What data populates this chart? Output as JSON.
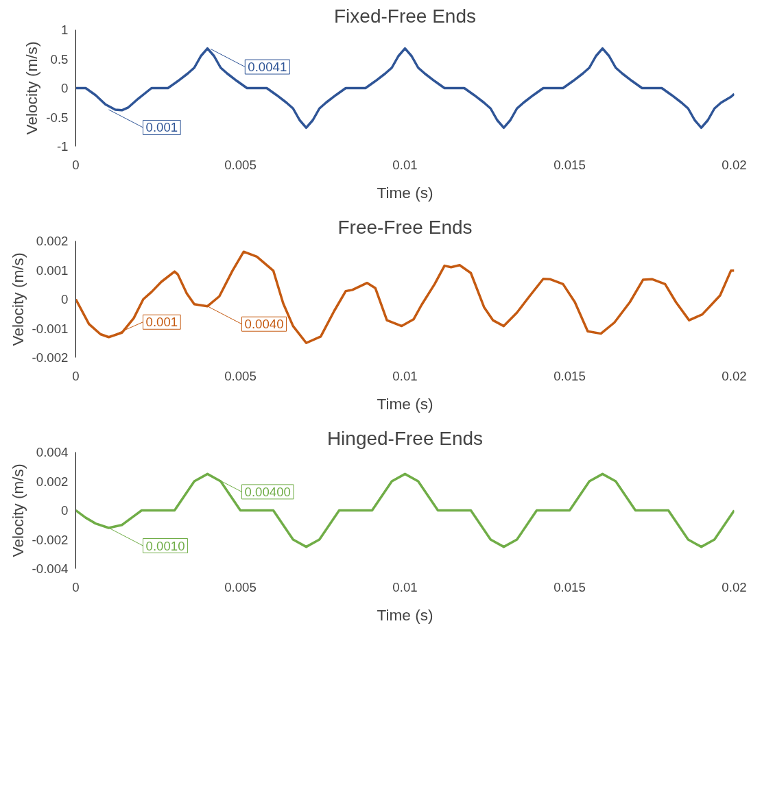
{
  "chart_data": [
    {
      "type": "line",
      "title": "Fixed-Free Ends",
      "xlabel": "Time (s)",
      "ylabel": "Velocity (m/s)",
      "xlim": [
        0,
        0.02
      ],
      "xticks": [
        0,
        0.005,
        0.01,
        0.015,
        0.02
      ],
      "ylim": [
        -1,
        1
      ],
      "yticks": [
        -1,
        -0.5,
        0,
        0.5,
        1
      ],
      "series": [
        {
          "color": "#2f5597",
          "x": [
            0,
            0.0003,
            0.0006,
            0.0009,
            0.0012,
            0.0014,
            0.0016,
            0.0019,
            0.0023,
            0.0028,
            0.0031,
            0.0034,
            0.0036,
            0.0038,
            0.004,
            0.0042,
            0.0044,
            0.0046,
            0.0049,
            0.0052,
            0.0058,
            0.0061,
            0.0064,
            0.0066,
            0.0068,
            0.007,
            0.0072,
            0.0074,
            0.0076,
            0.0079,
            0.0082,
            0.0088,
            0.0091,
            0.0094,
            0.0096,
            0.0098,
            0.01,
            0.0102,
            0.0104,
            0.0106,
            0.0109,
            0.0112,
            0.0118,
            0.0121,
            0.0124,
            0.0126,
            0.0128,
            0.013,
            0.0132,
            0.0134,
            0.0136,
            0.0139,
            0.0142,
            0.0148,
            0.0151,
            0.0154,
            0.0156,
            0.0158,
            0.016,
            0.0162,
            0.0164,
            0.0166,
            0.0169,
            0.0172,
            0.0178,
            0.0181,
            0.0184,
            0.0186,
            0.0188,
            0.019,
            0.0192,
            0.0194,
            0.0196,
            0.0199,
            0.02
          ],
          "values": [
            0,
            0,
            -0.12,
            -0.28,
            -0.37,
            -0.38,
            -0.33,
            -0.18,
            0,
            0,
            0.12,
            0.25,
            0.35,
            0.55,
            0.68,
            0.55,
            0.35,
            0.25,
            0.12,
            0,
            0,
            -0.12,
            -0.25,
            -0.35,
            -0.55,
            -0.68,
            -0.55,
            -0.35,
            -0.25,
            -0.12,
            0,
            0,
            0.12,
            0.25,
            0.35,
            0.55,
            0.68,
            0.55,
            0.35,
            0.25,
            0.12,
            0,
            0,
            -0.12,
            -0.25,
            -0.35,
            -0.55,
            -0.68,
            -0.55,
            -0.35,
            -0.25,
            -0.12,
            0,
            0,
            0.12,
            0.25,
            0.35,
            0.55,
            0.68,
            0.55,
            0.35,
            0.25,
            0.12,
            0,
            0,
            -0.12,
            -0.25,
            -0.35,
            -0.55,
            -0.68,
            -0.55,
            -0.35,
            -0.25,
            -0.15,
            -0.1
          ]
        }
      ],
      "annotations": [
        {
          "text": "0.001",
          "x": 0.001,
          "y": -0.37
        },
        {
          "text": "0.0041",
          "x": 0.0041,
          "y": 0.67
        }
      ]
    },
    {
      "type": "line",
      "title": "Free-Free Ends",
      "xlabel": "Time (s)",
      "ylabel": "Velocity (m/s)",
      "xlim": [
        0,
        0.02
      ],
      "xticks": [
        0,
        0.005,
        0.01,
        0.015,
        0.02
      ],
      "ylim": [
        -0.002,
        0.002
      ],
      "yticks": [
        -0.002,
        -0.001,
        0,
        0.001,
        0.002
      ],
      "series": [
        {
          "color": "#c55a11",
          "x": [
            0,
            0.0004,
            0.00075,
            0.001,
            0.0014,
            0.00176,
            0.00205,
            0.0023,
            0.0026,
            0.003,
            0.0031,
            0.00337,
            0.0036,
            0.004,
            0.00436,
            0.00476,
            0.0051,
            0.0055,
            0.006,
            0.0063,
            0.0066,
            0.007,
            0.00744,
            0.00785,
            0.0082,
            0.0084,
            0.00885,
            0.0091,
            0.00945,
            0.0099,
            0.01026,
            0.0105,
            0.0109,
            0.0112,
            0.0114,
            0.01166,
            0.012,
            0.0124,
            0.01267,
            0.013,
            0.0134,
            0.0138,
            0.0142,
            0.0144,
            0.0148,
            0.01516,
            0.01555,
            0.01595,
            0.01636,
            0.01683,
            0.01723,
            0.0175,
            0.0179,
            0.01823,
            0.01863,
            0.01903,
            0.01957,
            0.0199,
            0.02
          ],
          "values": [
            0,
            -0.00085,
            -0.0012,
            -0.0013,
            -0.00115,
            -0.00065,
            0,
            0.00025,
            0.0006,
            0.00095,
            0.00085,
            0.0002,
            -0.00017,
            -0.00024,
            0.0001,
            0.00098,
            0.00163,
            0.00146,
            0.00098,
            -0.00014,
            -0.00092,
            -0.0015,
            -0.00128,
            -0.0004,
            0.00028,
            0.00032,
            0.00056,
            0.00038,
            -0.00072,
            -0.00092,
            -0.00069,
            -0.0002,
            0.00052,
            0.00115,
            0.0011,
            0.00117,
            0.0009,
            -0.00027,
            -0.00072,
            -0.00092,
            -0.00046,
            0.00013,
            0.0007,
            0.00069,
            0.00052,
            -0.0001,
            -0.0011,
            -0.00118,
            -0.0008,
            -0.0001,
            0.00067,
            0.00069,
            0.00052,
            -0.0001,
            -0.00072,
            -0.00052,
            0.00013,
            0.00098,
            0.00098
          ]
        }
      ],
      "annotations": [
        {
          "text": "0.001",
          "x": 0.001,
          "y": -0.0013
        },
        {
          "text": "0.0040",
          "x": 0.004,
          "y": -0.00024
        }
      ]
    },
    {
      "type": "line",
      "title": "Hinged-Free Ends",
      "xlabel": "Time (s)",
      "ylabel": "Velocity (m/s)",
      "xlim": [
        0,
        0.02
      ],
      "xticks": [
        0,
        0.005,
        0.01,
        0.015,
        0.02
      ],
      "ylim": [
        -0.004,
        0.004
      ],
      "yticks": [
        -0.004,
        -0.002,
        0,
        0.002,
        0.004
      ],
      "series": [
        {
          "color": "#70ad47",
          "x": [
            0,
            0.0003,
            0.0006,
            0.001,
            0.0014,
            0.0017,
            0.002,
            0.003,
            0.0033,
            0.0036,
            0.004,
            0.0044,
            0.0047,
            0.005,
            0.006,
            0.0063,
            0.0066,
            0.007,
            0.0074,
            0.0077,
            0.008,
            0.009,
            0.0093,
            0.0096,
            0.01,
            0.0104,
            0.0107,
            0.011,
            0.012,
            0.0123,
            0.0126,
            0.013,
            0.0134,
            0.0137,
            0.014,
            0.015,
            0.0153,
            0.0156,
            0.016,
            0.0164,
            0.0167,
            0.017,
            0.018,
            0.0183,
            0.0186,
            0.019,
            0.0194,
            0.0197,
            0.02
          ],
          "values": [
            0,
            -0.0005,
            -0.0009,
            -0.0012,
            -0.001,
            -0.0005,
            0,
            0,
            0.001,
            0.002,
            0.0025,
            0.002,
            0.001,
            0,
            0,
            -0.001,
            -0.002,
            -0.0025,
            -0.002,
            -0.001,
            0,
            0,
            0.001,
            0.002,
            0.0025,
            0.002,
            0.001,
            0,
            0,
            -0.001,
            -0.002,
            -0.0025,
            -0.002,
            -0.001,
            0,
            0,
            0.001,
            0.002,
            0.0025,
            0.002,
            0.001,
            0,
            0,
            -0.001,
            -0.002,
            -0.0025,
            -0.002,
            -0.001,
            0
          ]
        }
      ],
      "annotations": [
        {
          "text": "0.0010",
          "x": 0.001,
          "y": -0.0012
        },
        {
          "text": "0.00400",
          "x": 0.004,
          "y": 0.0025
        }
      ]
    }
  ]
}
